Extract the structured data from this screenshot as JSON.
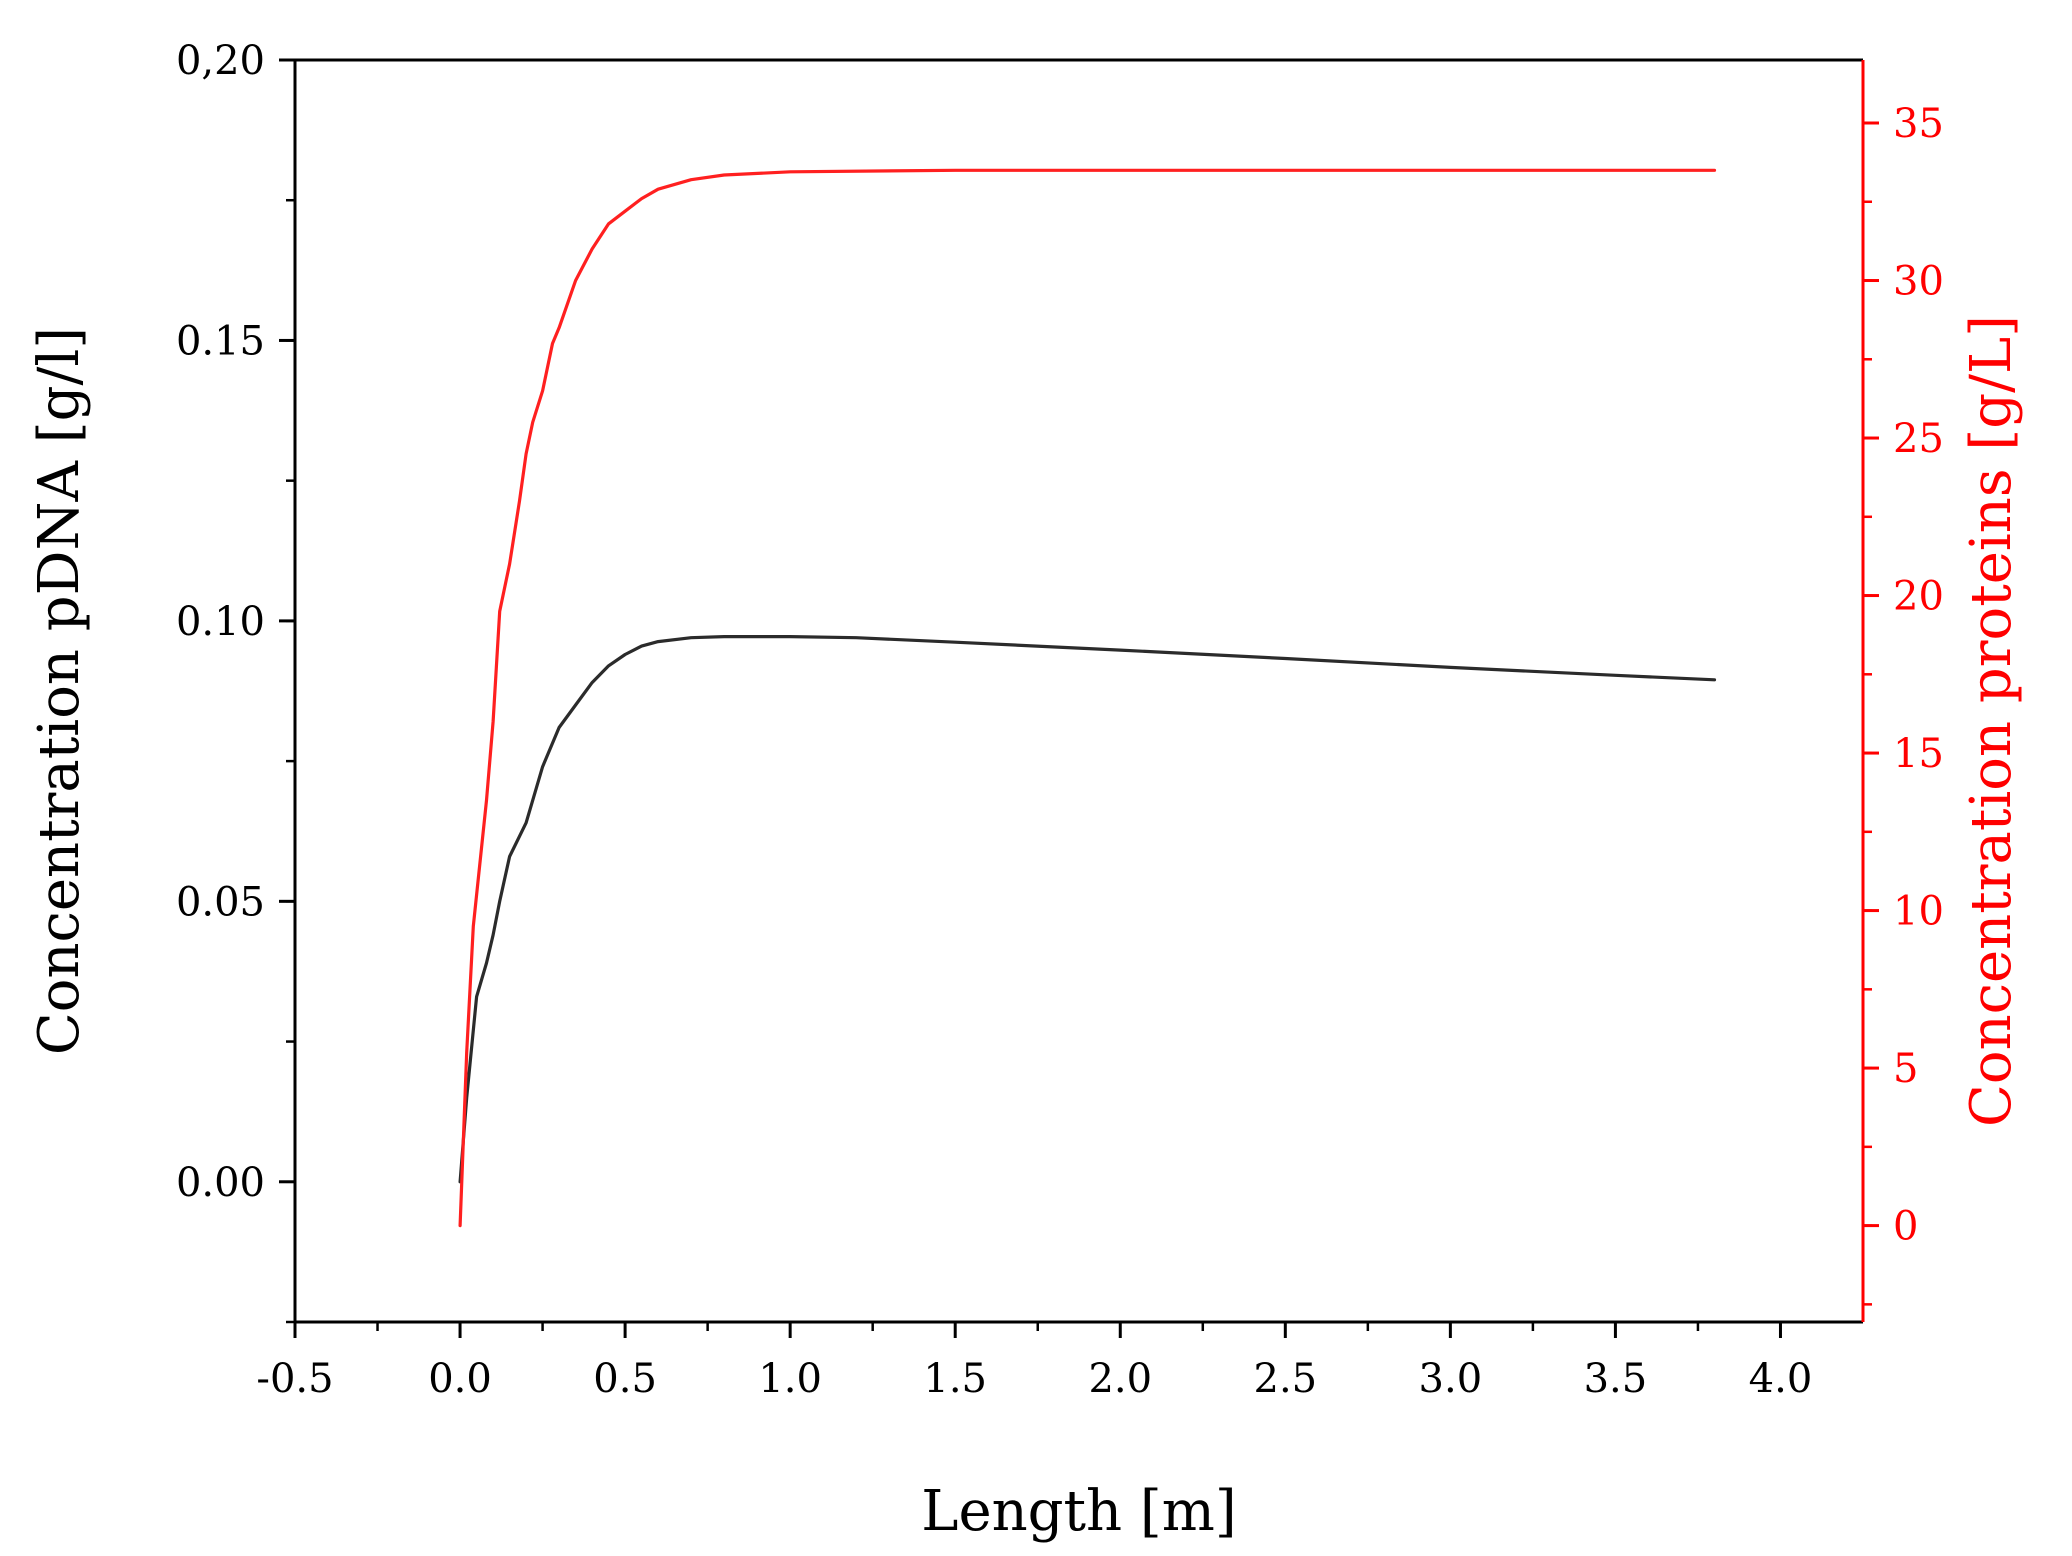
{
  "chart_data": {
    "type": "line",
    "title": "",
    "xlabel": "Length [m]",
    "ylabel_left": "Concentration pDNA [g/l]",
    "ylabel_right": "Concentration proteins [g/L]",
    "xlim": [
      -0.5,
      4.25
    ],
    "ylim_left": [
      -0.025,
      0.2
    ],
    "ylim_right": [
      -3.06,
      37.0
    ],
    "x_ticks": [
      -0.5,
      0.0,
      0.5,
      1.0,
      1.5,
      2.0,
      2.5,
      3.0,
      3.5,
      4.0
    ],
    "x_tick_labels": [
      "-0.5",
      "0.0",
      "0.5",
      "1.0",
      "1.5",
      "2.0",
      "2.5",
      "3.0",
      "3.5",
      "4.0"
    ],
    "y_left_ticks": [
      0.0,
      0.05,
      0.1,
      0.15,
      0.2
    ],
    "y_left_tick_labels": [
      "0.00",
      "0.05",
      "0.10",
      "0.15",
      "0,20"
    ],
    "y_right_ticks": [
      0,
      5,
      10,
      15,
      20,
      25,
      30,
      35
    ],
    "y_right_tick_labels": [
      "0",
      "5",
      "10",
      "15",
      "20",
      "25",
      "30",
      "35"
    ],
    "grid": false,
    "legend": "none",
    "colors": {
      "pdna": "#2b2b2b",
      "proteins": "#ff2020",
      "axis_left": "#000000",
      "axis_right": "#ff0000"
    },
    "series": [
      {
        "axis": "left",
        "color": "#2b2b2b",
        "x": [
          0.0,
          0.02,
          0.05,
          0.08,
          0.1,
          0.12,
          0.15,
          0.2,
          0.25,
          0.3,
          0.35,
          0.4,
          0.45,
          0.5,
          0.55,
          0.6,
          0.7,
          0.8,
          1.0,
          1.2,
          1.5,
          2.0,
          2.5,
          3.0,
          3.5,
          3.8
        ],
        "y": [
          0.0,
          0.015,
          0.033,
          0.039,
          0.044,
          0.05,
          0.058,
          0.064,
          0.074,
          0.081,
          0.085,
          0.089,
          0.092,
          0.094,
          0.0955,
          0.0963,
          0.097,
          0.0972,
          0.0972,
          0.097,
          0.0962,
          0.0948,
          0.0933,
          0.0917,
          0.0903,
          0.0895
        ]
      },
      {
        "axis": "right",
        "color": "#ff2020",
        "x": [
          0.0,
          0.02,
          0.04,
          0.06,
          0.08,
          0.1,
          0.12,
          0.15,
          0.18,
          0.2,
          0.22,
          0.25,
          0.28,
          0.3,
          0.35,
          0.4,
          0.45,
          0.5,
          0.55,
          0.6,
          0.7,
          0.8,
          1.0,
          1.5,
          2.0,
          3.0,
          3.8
        ],
        "y": [
          0.0,
          5.5,
          9.5,
          11.5,
          13.5,
          16.0,
          19.5,
          21.0,
          23.0,
          24.5,
          25.5,
          26.5,
          28.0,
          28.5,
          30.0,
          31.0,
          31.8,
          32.2,
          32.6,
          32.9,
          33.2,
          33.35,
          33.45,
          33.5,
          33.5,
          33.5,
          33.5
        ]
      }
    ]
  }
}
